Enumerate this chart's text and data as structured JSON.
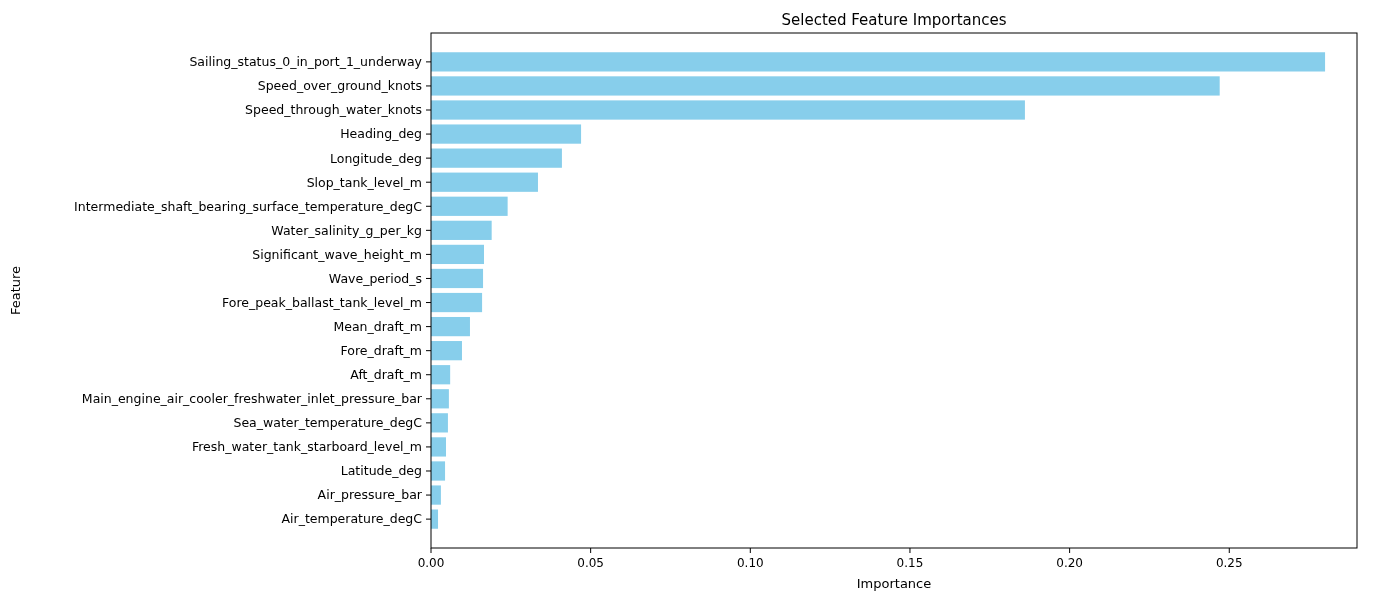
{
  "chart_data": {
    "type": "bar",
    "orientation": "horizontal",
    "title": "Selected Feature Importances",
    "xlabel": "Importance",
    "ylabel": "Feature",
    "categories": [
      "Sailing_status_0_in_port_1_underway",
      "Speed_over_ground_knots",
      "Speed_through_water_knots",
      "Heading_deg",
      "Longitude_deg",
      "Slop_tank_level_m",
      "Intermediate_shaft_bearing_surface_temperature_degC",
      "Water_salinity_g_per_kg",
      "Significant_wave_height_m",
      "Wave_period_s",
      "Fore_peak_ballast_tank_level_m",
      "Mean_draft_m",
      "Fore_draft_m",
      "Aft_draft_m",
      "Main_engine_air_cooler_freshwater_inlet_pressure_bar",
      "Sea_water_temperature_degC",
      "Fresh_water_tank_starboard_level_m",
      "Latitude_deg",
      "Air_pressure_bar",
      "Air_temperature_degC"
    ],
    "values": [
      0.28,
      0.247,
      0.186,
      0.047,
      0.041,
      0.0335,
      0.024,
      0.019,
      0.0166,
      0.0163,
      0.016,
      0.0122,
      0.0097,
      0.006,
      0.0056,
      0.0053,
      0.0047,
      0.0044,
      0.0031,
      0.0022
    ],
    "color": "#87ceeb",
    "xlim": [
      0,
      0.29
    ],
    "xticks": [
      {
        "value": 0,
        "label": "0.00"
      },
      0.05,
      {
        "value": 0.1,
        "label": "0.10"
      },
      0.15,
      {
        "value": 0.2,
        "label": "0.20"
      },
      0.25
    ],
    "grid": false
  }
}
